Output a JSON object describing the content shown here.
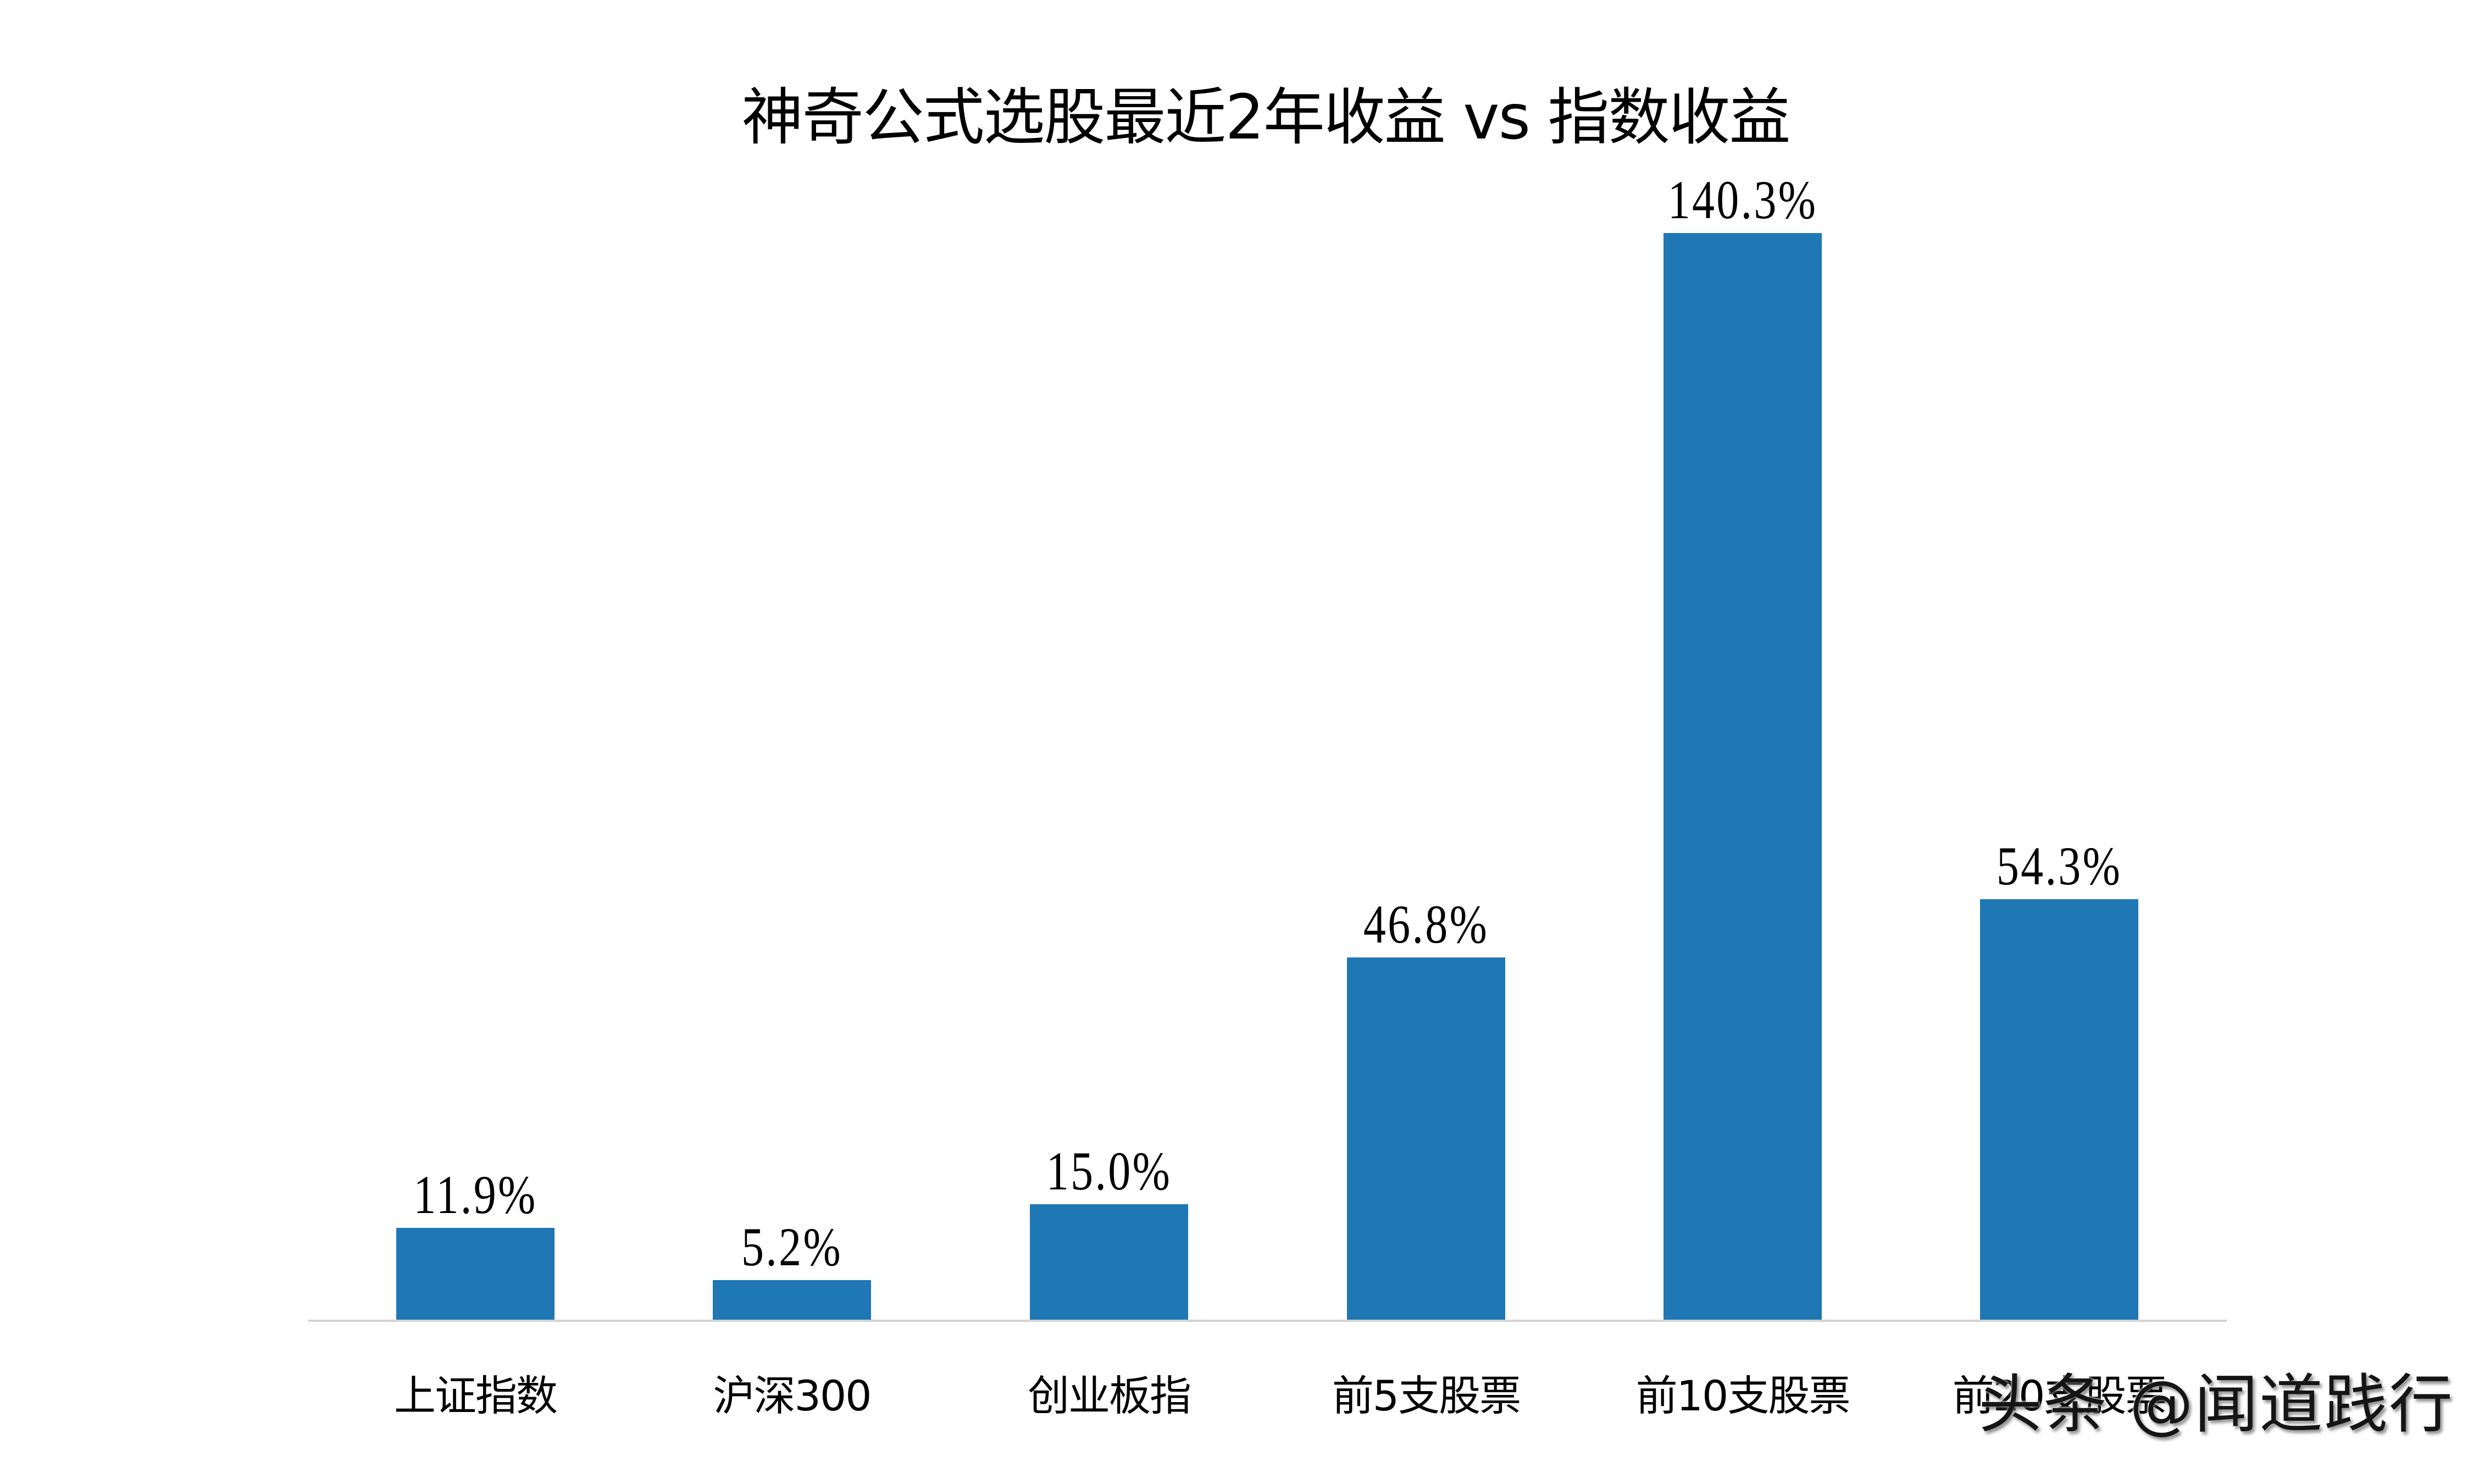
{
  "title": "神奇公式选股最近2年收益 vs 指数收益",
  "chart_data": {
    "type": "bar",
    "title": "神奇公式选股最近2年收益 vs 指数收益",
    "categories": [
      "上证指数",
      "沪深300",
      "创业板指",
      "前5支股票",
      "前10支股票",
      "前20支股票"
    ],
    "values": [
      11.9,
      5.2,
      15.0,
      46.8,
      140.3,
      54.3
    ],
    "data_labels": [
      "11.9%",
      "5.2%",
      "15.0%",
      "46.8%",
      "140.3%",
      "54.3%"
    ],
    "unit": "%",
    "xlabel": "",
    "ylabel": "",
    "y_axis_visible": false,
    "grid": false,
    "legend": null,
    "series": [
      {
        "name": "收益",
        "values": [
          11.9,
          5.2,
          15.0,
          46.8,
          140.3,
          54.3
        ]
      }
    ]
  },
  "colors": {
    "bar": "#1f77b4",
    "axis_line": "#d3d3d3",
    "text": "#000000",
    "background": "#ffffff"
  },
  "watermark": {
    "text": "头条 @闻道践行"
  }
}
